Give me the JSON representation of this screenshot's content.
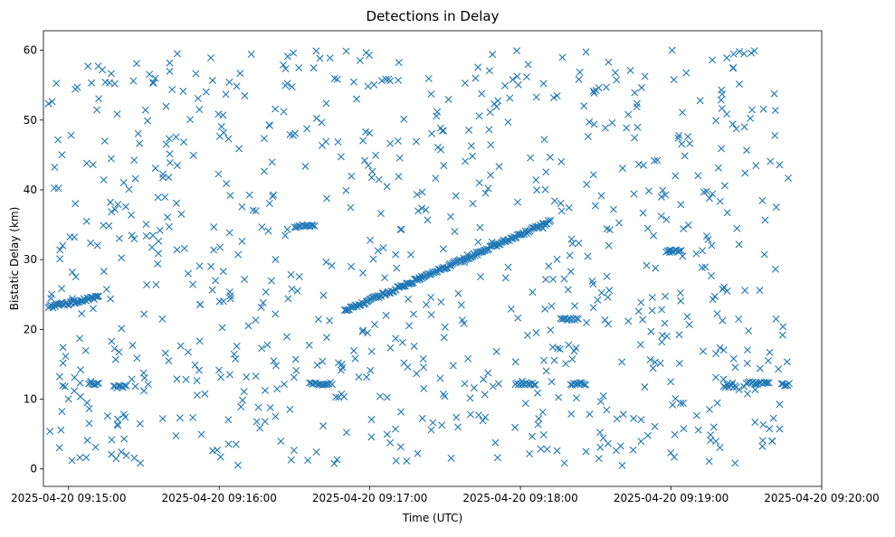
{
  "chart_data": {
    "type": "scatter",
    "title": "Detections in Delay",
    "xlabel": "Time (UTC)",
    "ylabel": "Bistatic Delay (km)",
    "x_unit": "UTC time",
    "xlim": [
      "2025-04-20 09:14:50",
      "2025-04-20 09:20:00"
    ],
    "ylim": [
      -2.5,
      62.8
    ],
    "xticks": [
      "2025-04-20 09:15:00",
      "2025-04-20 09:16:00",
      "2025-04-20 09:17:00",
      "2025-04-20 09:18:00",
      "2025-04-20 09:19:00",
      "2025-04-20 09:20:00"
    ],
    "yticks": [
      "0",
      "10",
      "20",
      "30",
      "40",
      "50",
      "60"
    ],
    "grid": false,
    "legend": "none",
    "marker": "x",
    "series_color": "#1f77b4",
    "tracks": [
      {
        "start": "2025-04-20 09:14:52",
        "end": "2025-04-20 09:15:12",
        "delay_start_km": 23.2,
        "delay_end_km": 24.6
      },
      {
        "start": "2025-04-20 09:16:50",
        "end": "2025-04-20 09:18:12",
        "delay_start_km": 22.6,
        "delay_end_km": 35.5
      }
    ],
    "clusters": [
      {
        "start": "2025-04-20 09:15:08",
        "end": "2025-04-20 09:15:12",
        "delay_km": 12.2
      },
      {
        "start": "2025-04-20 09:15:18",
        "end": "2025-04-20 09:15:23",
        "delay_km": 11.8
      },
      {
        "start": "2025-04-20 09:16:36",
        "end": "2025-04-20 09:16:45",
        "delay_km": 12.2
      },
      {
        "start": "2025-04-20 09:16:30",
        "end": "2025-04-20 09:16:38",
        "delay_km": 34.8
      },
      {
        "start": "2025-04-20 09:18:16",
        "end": "2025-04-20 09:18:23",
        "delay_km": 21.5
      },
      {
        "start": "2025-04-20 09:18:20",
        "end": "2025-04-20 09:18:26",
        "delay_km": 12.2
      },
      {
        "start": "2025-04-20 09:17:58",
        "end": "2025-04-20 09:18:06",
        "delay_km": 12.2
      },
      {
        "start": "2025-04-20 09:18:58",
        "end": "2025-04-20 09:19:04",
        "delay_km": 31.2
      },
      {
        "start": "2025-04-20 09:19:21",
        "end": "2025-04-20 09:19:26",
        "delay_km": 11.9
      },
      {
        "start": "2025-04-20 09:19:30",
        "end": "2025-04-20 09:19:39",
        "delay_km": 12.3
      },
      {
        "start": "2025-04-20 09:19:44",
        "end": "2025-04-20 09:19:47",
        "delay_km": 12.1
      }
    ],
    "noise": {
      "time_range": [
        "2025-04-20 09:14:52",
        "2025-04-20 09:19:47"
      ],
      "delay_range_km": [
        0.5,
        60
      ],
      "approx_count": 850
    }
  }
}
